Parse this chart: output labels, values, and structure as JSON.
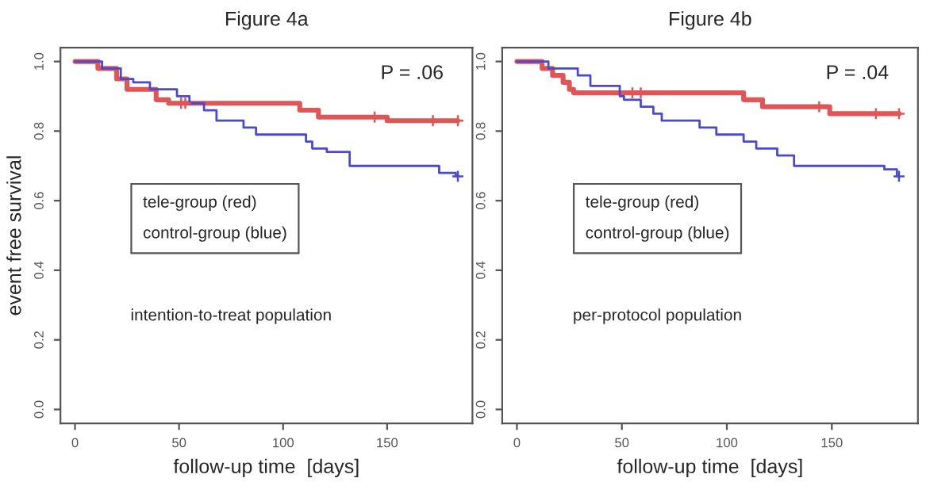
{
  "chart_data": [
    {
      "type": "step",
      "title": "Figure 4a",
      "xlabel": "follow-up time  [days]",
      "ylabel": "event free survival",
      "xlim": [
        -7,
        191
      ],
      "ylim": [
        -0.04,
        1.04
      ],
      "xticks": [
        0,
        50,
        100,
        150
      ],
      "yticks": [
        {
          "value": 0,
          "label": "0.0"
        },
        {
          "value": 0.2,
          "label": "0.2"
        },
        {
          "value": 0.4,
          "label": "0.4"
        },
        {
          "value": 0.6,
          "label": "0.6"
        },
        {
          "value": 0.8,
          "label": "0.8"
        },
        {
          "value": 1,
          "label": "1.0"
        }
      ],
      "grid": false,
      "legend": false,
      "series": [
        {
          "color": "#e05555",
          "x": [
            0,
            11,
            20,
            25,
            39,
            45,
            108,
            117,
            150,
            184
          ],
          "values": [
            1.0,
            0.98,
            0.95,
            0.92,
            0.89,
            0.88,
            0.86,
            0.84,
            0.83,
            0.83
          ]
        },
        {
          "color": "#4a4ad0",
          "x": [
            0,
            13,
            22,
            28,
            36,
            49,
            55,
            62,
            68,
            81,
            87,
            111,
            114,
            121,
            132,
            175,
            183,
            184
          ],
          "values": [
            1.0,
            0.98,
            0.95,
            0.94,
            0.92,
            0.9,
            0.88,
            0.86,
            0.83,
            0.81,
            0.79,
            0.77,
            0.75,
            0.74,
            0.7,
            0.68,
            0.67,
            0.67
          ]
        },
        {
          "type": "scatter",
          "marker": "cross",
          "color": "#e05555",
          "x": [
            51,
            53,
            144,
            172,
            184
          ],
          "values": [
            0.88,
            0.88,
            0.84,
            0.83,
            0.83
          ]
        },
        {
          "type": "scatter",
          "marker": "cross",
          "color": "#4a4ad0",
          "x": [
            184
          ],
          "values": [
            0.67
          ]
        }
      ],
      "annotations": [
        "P = .06",
        "tele-group (red)",
        "control-group (blue)",
        "intention-to-treat population"
      ]
    },
    {
      "type": "step",
      "title": "Figure 4b",
      "xlabel": "follow-up time  [days]",
      "xlim": [
        -7,
        191
      ],
      "ylim": [
        -0.04,
        1.04
      ],
      "xticks": [
        0,
        50,
        100,
        150
      ],
      "yticks": [
        {
          "value": 0,
          "label": "0.0"
        },
        {
          "value": 0.2,
          "label": "0.2"
        },
        {
          "value": 0.4,
          "label": "0.4"
        },
        {
          "value": 0.6,
          "label": "0.6"
        },
        {
          "value": 0.8,
          "label": "0.8"
        },
        {
          "value": 1,
          "label": "1.0"
        }
      ],
      "grid": false,
      "legend": false,
      "series": [
        {
          "color": "#e05555",
          "x": [
            0,
            12,
            17,
            22,
            25,
            27,
            108,
            117,
            149,
            182
          ],
          "values": [
            1.0,
            0.98,
            0.96,
            0.94,
            0.92,
            0.91,
            0.89,
            0.87,
            0.85,
            0.85
          ]
        },
        {
          "color": "#4a4ad0",
          "x": [
            0,
            15,
            29,
            35,
            49,
            51,
            59,
            65,
            69,
            87,
            95,
            108,
            114,
            124,
            132,
            175,
            181,
            182
          ],
          "values": [
            1.0,
            0.98,
            0.96,
            0.93,
            0.9,
            0.89,
            0.87,
            0.85,
            0.83,
            0.81,
            0.79,
            0.77,
            0.75,
            0.73,
            0.7,
            0.69,
            0.67,
            0.67
          ]
        },
        {
          "type": "scatter",
          "marker": "cross",
          "color": "#e05555",
          "x": [
            55,
            59,
            144,
            171,
            182
          ],
          "values": [
            0.91,
            0.91,
            0.87,
            0.85,
            0.85
          ]
        },
        {
          "type": "scatter",
          "marker": "cross",
          "color": "#4a4ad0",
          "x": [
            182
          ],
          "values": [
            0.67
          ]
        }
      ],
      "annotations": [
        "P = .04",
        "tele-group (red)",
        "control-group (blue)",
        "per-protocol population"
      ]
    }
  ]
}
